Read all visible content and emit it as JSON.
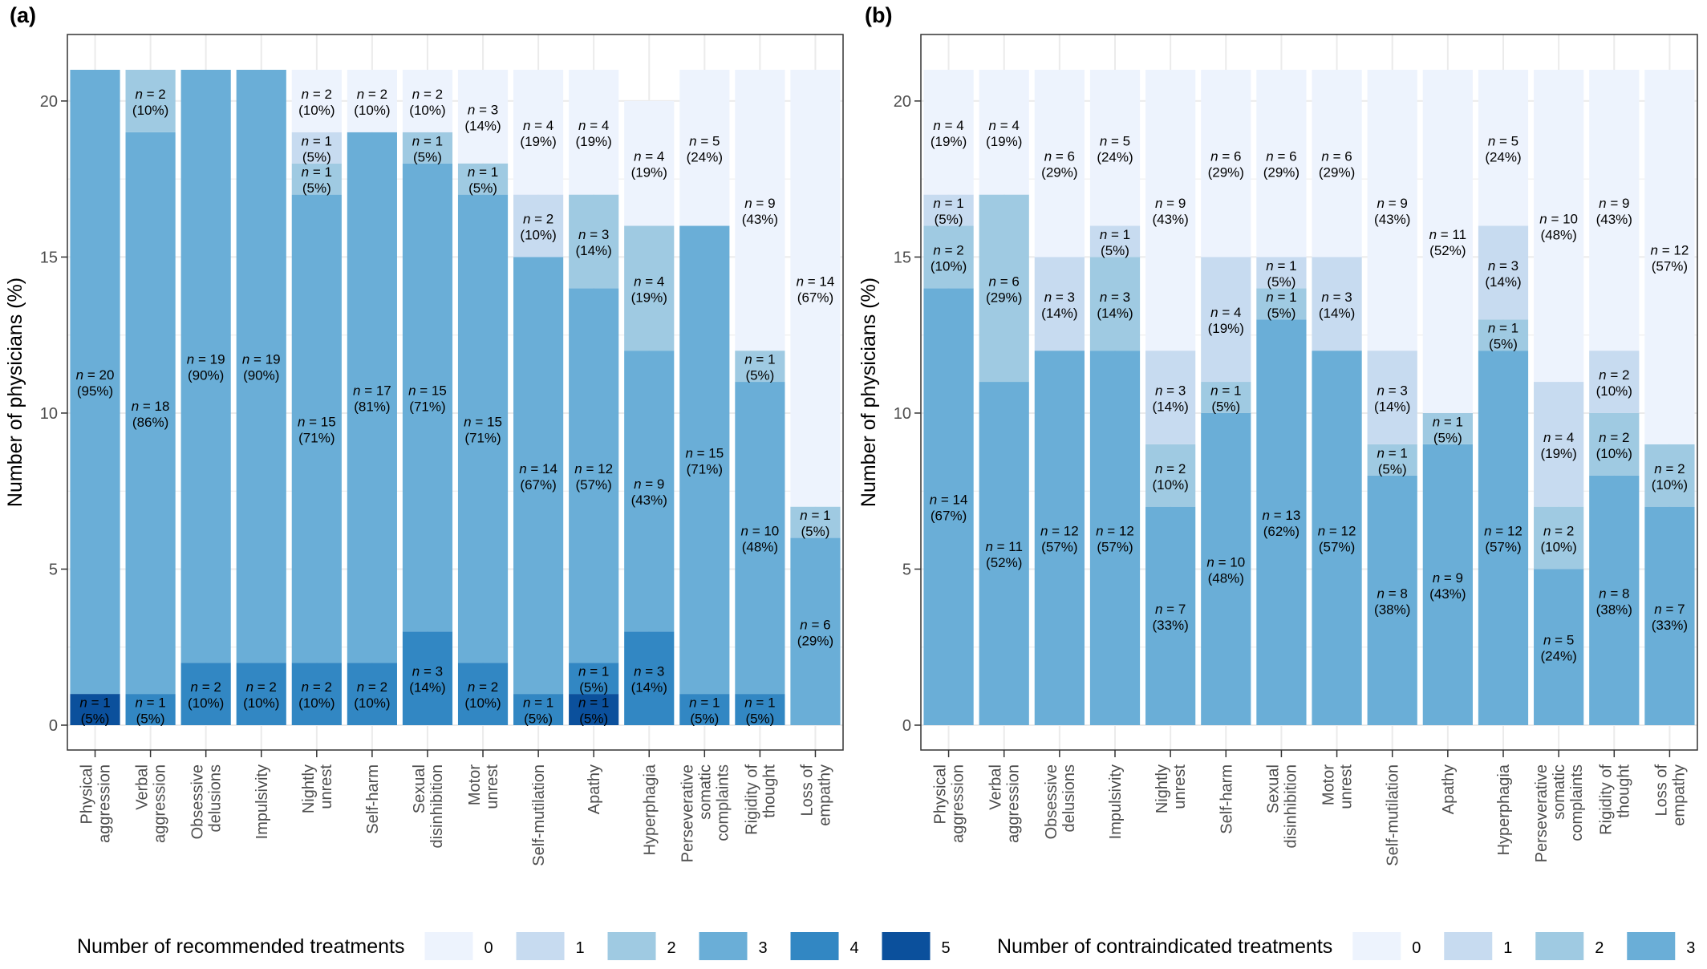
{
  "colors": {
    "c0": "#edf3fd",
    "c1": "#c7dbf0",
    "c2": "#9fcae2",
    "c3": "#6aaed7",
    "c4": "#3287c3",
    "c5": "#0b509c",
    "panel_bg": "#ffffff",
    "grid": "#ebebeb",
    "border": "#333333"
  },
  "chart_data": [
    {
      "panel_label": "(a)",
      "type": "bar",
      "stacked": true,
      "ylabel": "Number of physicians (%)",
      "ylim": [
        0,
        21
      ],
      "yticks": [
        0,
        5,
        10,
        15,
        20
      ],
      "grid": true,
      "legend_title": "Number of recommended treatments",
      "legend_position": "bottom",
      "categories": [
        "Physical\naggression",
        "Verbal\naggression",
        "Obsessive\ndelusions",
        "Impulsivity",
        "Nightly\nunrest",
        "Self-harm",
        "Sexual\ndisinhibition",
        "Motor\nunrest",
        "Self-mutilation",
        "Apathy",
        "Hyperphagia",
        "Perseverative\nsomatic\ncomplaints",
        "Rigidity of\nthought",
        "Loss of\nempathy"
      ],
      "series": [
        {
          "name": "0",
          "color_key": "c0",
          "values": [
            0,
            0,
            0,
            0,
            2,
            2,
            2,
            3,
            4,
            4,
            4,
            5,
            9,
            14
          ],
          "labels": [
            "",
            "",
            "",
            "",
            "(10%)",
            "(10%)",
            "(10%)",
            "(14%)",
            "(19%)",
            "(19%)",
            "(19%)",
            "(24%)",
            "(43%)",
            "(67%)"
          ]
        },
        {
          "name": "1",
          "color_key": "c1",
          "values": [
            0,
            0,
            0,
            0,
            1,
            0,
            0,
            0,
            2,
            0,
            0,
            0,
            0,
            0
          ],
          "labels": [
            "",
            "",
            "",
            "",
            "(5%)",
            "",
            "",
            "",
            "(10%)",
            "",
            "",
            "",
            "",
            ""
          ]
        },
        {
          "name": "2",
          "color_key": "c2",
          "values": [
            0,
            2,
            0,
            0,
            1,
            0,
            1,
            1,
            0,
            3,
            4,
            0,
            1,
            1
          ],
          "labels": [
            "",
            "(10%)",
            "",
            "",
            "(5%)",
            "",
            "(5%)",
            "(5%)",
            "",
            "(14%)",
            "(19%)",
            "",
            "(5%)",
            "(5%)"
          ]
        },
        {
          "name": "3",
          "color_key": "c3",
          "values": [
            20,
            18,
            19,
            19,
            15,
            17,
            15,
            15,
            14,
            12,
            9,
            15,
            10,
            6
          ],
          "labels": [
            "(95%)",
            "(86%)",
            "(90%)",
            "(90%)",
            "(71%)",
            "(81%)",
            "(71%)",
            "(71%)",
            "(67%)",
            "(57%)",
            "(43%)",
            "(71%)",
            "(48%)",
            "(29%)"
          ]
        },
        {
          "name": "4",
          "color_key": "c4",
          "values": [
            0,
            1,
            2,
            2,
            2,
            2,
            3,
            2,
            1,
            1,
            3,
            1,
            1,
            0
          ],
          "labels": [
            "",
            "(5%)",
            "(10%)",
            "(10%)",
            "(10%)",
            "(10%)",
            "(14%)",
            "(10%)",
            "(5%)",
            "(5%)",
            "(14%)",
            "(5%)",
            "(5%)",
            ""
          ]
        },
        {
          "name": "5",
          "color_key": "c5",
          "values": [
            1,
            0,
            0,
            0,
            0,
            0,
            0,
            0,
            0,
            1,
            0,
            0,
            0,
            0
          ],
          "labels": [
            "(5%)",
            "",
            "",
            "",
            "",
            "",
            "",
            "",
            "",
            "(5%)",
            "",
            "",
            "",
            ""
          ]
        }
      ]
    },
    {
      "panel_label": "(b)",
      "type": "bar",
      "stacked": true,
      "ylabel": "Number of physicians (%)",
      "ylim": [
        0,
        21
      ],
      "yticks": [
        0,
        5,
        10,
        15,
        20
      ],
      "grid": true,
      "legend_title": "Number of contraindicated treatments",
      "legend_position": "bottom",
      "categories": [
        "Physical\naggression",
        "Verbal\naggression",
        "Obsessive\ndelusions",
        "Impulsivity",
        "Nightly\nunrest",
        "Self-harm",
        "Sexual\ndisinhibition",
        "Motor\nunrest",
        "Self-mutilation",
        "Apathy",
        "Hyperphagia",
        "Perseverative\nsomatic\ncomplaints",
        "Rigidity of\nthought",
        "Loss of\nempathy"
      ],
      "series": [
        {
          "name": "0",
          "color_key": "c0",
          "values": [
            4,
            4,
            6,
            5,
            9,
            6,
            6,
            6,
            9,
            11,
            5,
            10,
            9,
            12
          ],
          "labels": [
            "(19%)",
            "(19%)",
            "(29%)",
            "(24%)",
            "(43%)",
            "(29%)",
            "(29%)",
            "(29%)",
            "(43%)",
            "(52%)",
            "(24%)",
            "(48%)",
            "(43%)",
            "(57%)"
          ]
        },
        {
          "name": "1",
          "color_key": "c1",
          "values": [
            1,
            0,
            3,
            1,
            3,
            4,
            1,
            3,
            3,
            0,
            3,
            4,
            2,
            0
          ],
          "labels": [
            "(5%)",
            "",
            "(14%)",
            "(5%)",
            "(14%)",
            "(19%)",
            "(5%)",
            "(14%)",
            "(14%)",
            "",
            "(14%)",
            "(19%)",
            "(10%)",
            ""
          ]
        },
        {
          "name": "2",
          "color_key": "c2",
          "values": [
            2,
            6,
            0,
            3,
            2,
            1,
            1,
            0,
            1,
            1,
            1,
            2,
            2,
            2
          ],
          "labels": [
            "(10%)",
            "(29%)",
            "",
            "(14%)",
            "(10%)",
            "(5%)",
            "(5%)",
            "",
            "(5%)",
            "(5%)",
            "(5%)",
            "(10%)",
            "(10%)",
            "(10%)"
          ]
        },
        {
          "name": "3",
          "color_key": "c3",
          "values": [
            14,
            11,
            12,
            12,
            7,
            10,
            13,
            12,
            8,
            9,
            12,
            5,
            8,
            7
          ],
          "labels": [
            "(67%)",
            "(52%)",
            "(57%)",
            "(57%)",
            "(33%)",
            "(48%)",
            "(62%)",
            "(57%)",
            "(38%)",
            "(43%)",
            "(57%)",
            "(24%)",
            "(38%)",
            "(33%)"
          ]
        }
      ]
    }
  ]
}
